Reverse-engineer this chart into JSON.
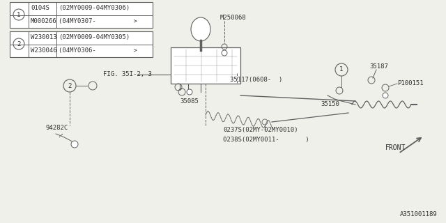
{
  "bg_color": "#f0f0eb",
  "line_color": "#606060",
  "text_color": "#303030",
  "title_bottom": "A351001189",
  "table1_rows": [
    [
      "0104S",
      "(02MY0009-04MY0306)"
    ],
    [
      "M000266",
      "(04MY0307-          >)"
    ]
  ],
  "table2_rows": [
    [
      "W230013",
      "(02MY0009-04MY0305)"
    ],
    [
      "W230046",
      "(04MY0306-          >)"
    ]
  ],
  "fig_label": "FIG. 35I-2, 3",
  "label_M250068": "M250068",
  "label_35187": "35187",
  "label_P100151": "P100151",
  "label_35117": "35117(0608-  )",
  "label_35085": "35085",
  "label_35150": "35150",
  "label_94282C": "94282C",
  "label_0237S": "0237S(02MY-02MY0010)",
  "label_0238S": "0238S(02MY0011-       )",
  "label_front": "FRONT"
}
